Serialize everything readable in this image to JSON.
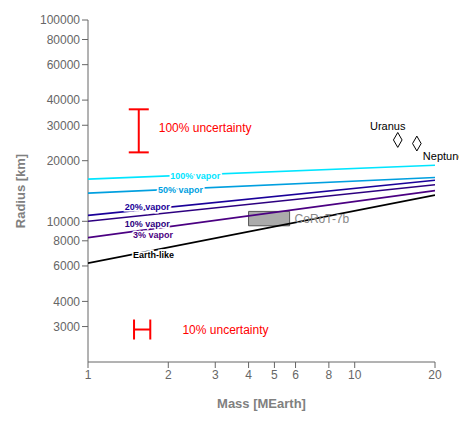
{
  "chart_data": {
    "type": "line",
    "log": true,
    "grid": false,
    "xlabel": "Mass [MEarth]",
    "ylabel": "Radius [km]",
    "x": [
      1,
      20
    ],
    "xlim": [
      1,
      20
    ],
    "ylim": [
      2000,
      100000
    ],
    "xticks": [
      1,
      2,
      3,
      4,
      5,
      6,
      8,
      10,
      20
    ],
    "yticks": [
      3000,
      4000,
      6000,
      8000,
      10000,
      20000,
      30000,
      40000,
      60000,
      80000,
      100000
    ],
    "series": [
      {
        "name": "100% vapor",
        "color": "#00e5ff",
        "values": [
          16200,
          19000
        ]
      },
      {
        "name": "50% vapor",
        "color": "#009fdf",
        "values": [
          13800,
          16500
        ]
      },
      {
        "name": "20% vapor",
        "color": "#1a0099",
        "values": [
          10700,
          16000
        ]
      },
      {
        "name": "10% vapor",
        "color": "#2d0080",
        "values": [
          10000,
          15200
        ]
      },
      {
        "name": "3% vapor",
        "color": "#4b0082",
        "values": [
          8300,
          14200
        ]
      },
      {
        "name": "Earth-like",
        "color": "#000000",
        "values": [
          6200,
          13500
        ]
      }
    ],
    "regions": [
      {
        "label": "CoRoT-7b",
        "x": [
          4.0,
          5.7
        ],
        "y": [
          9500,
          11200
        ],
        "color": "#888888"
      }
    ],
    "points": {
      "labels": [
        "Uranus",
        "Neptune"
      ],
      "x": [
        14.5,
        17.1
      ],
      "values": [
        25360,
        24340
      ],
      "marker": "diamond"
    },
    "error_bars": [
      {
        "label": "100% uncertainty",
        "x": 1.55,
        "y": 29000,
        "yerr": 7000,
        "color": "red"
      },
      {
        "label": "10% uncertainty",
        "x": 1.6,
        "y": 2900,
        "xerr": 0.112,
        "color": "red"
      }
    ]
  }
}
